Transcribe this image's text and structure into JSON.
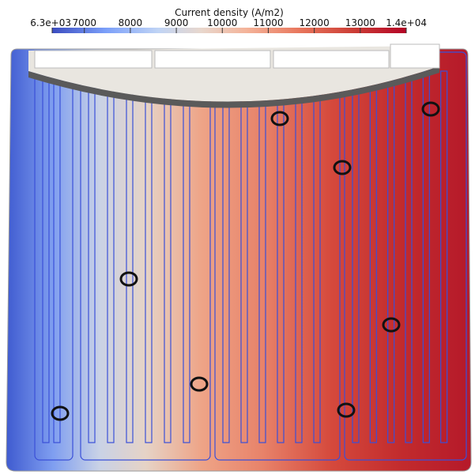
{
  "colorbar": {
    "title": "Current density (A/m2)",
    "lim": [
      6300,
      14000
    ],
    "ticks": [
      {
        "value": 6300,
        "label": "6.3e+03"
      },
      7000,
      8000,
      9000,
      10000,
      11000,
      12000,
      13000,
      {
        "value": 14000,
        "label": "1.4e+04"
      }
    ]
  }
}
